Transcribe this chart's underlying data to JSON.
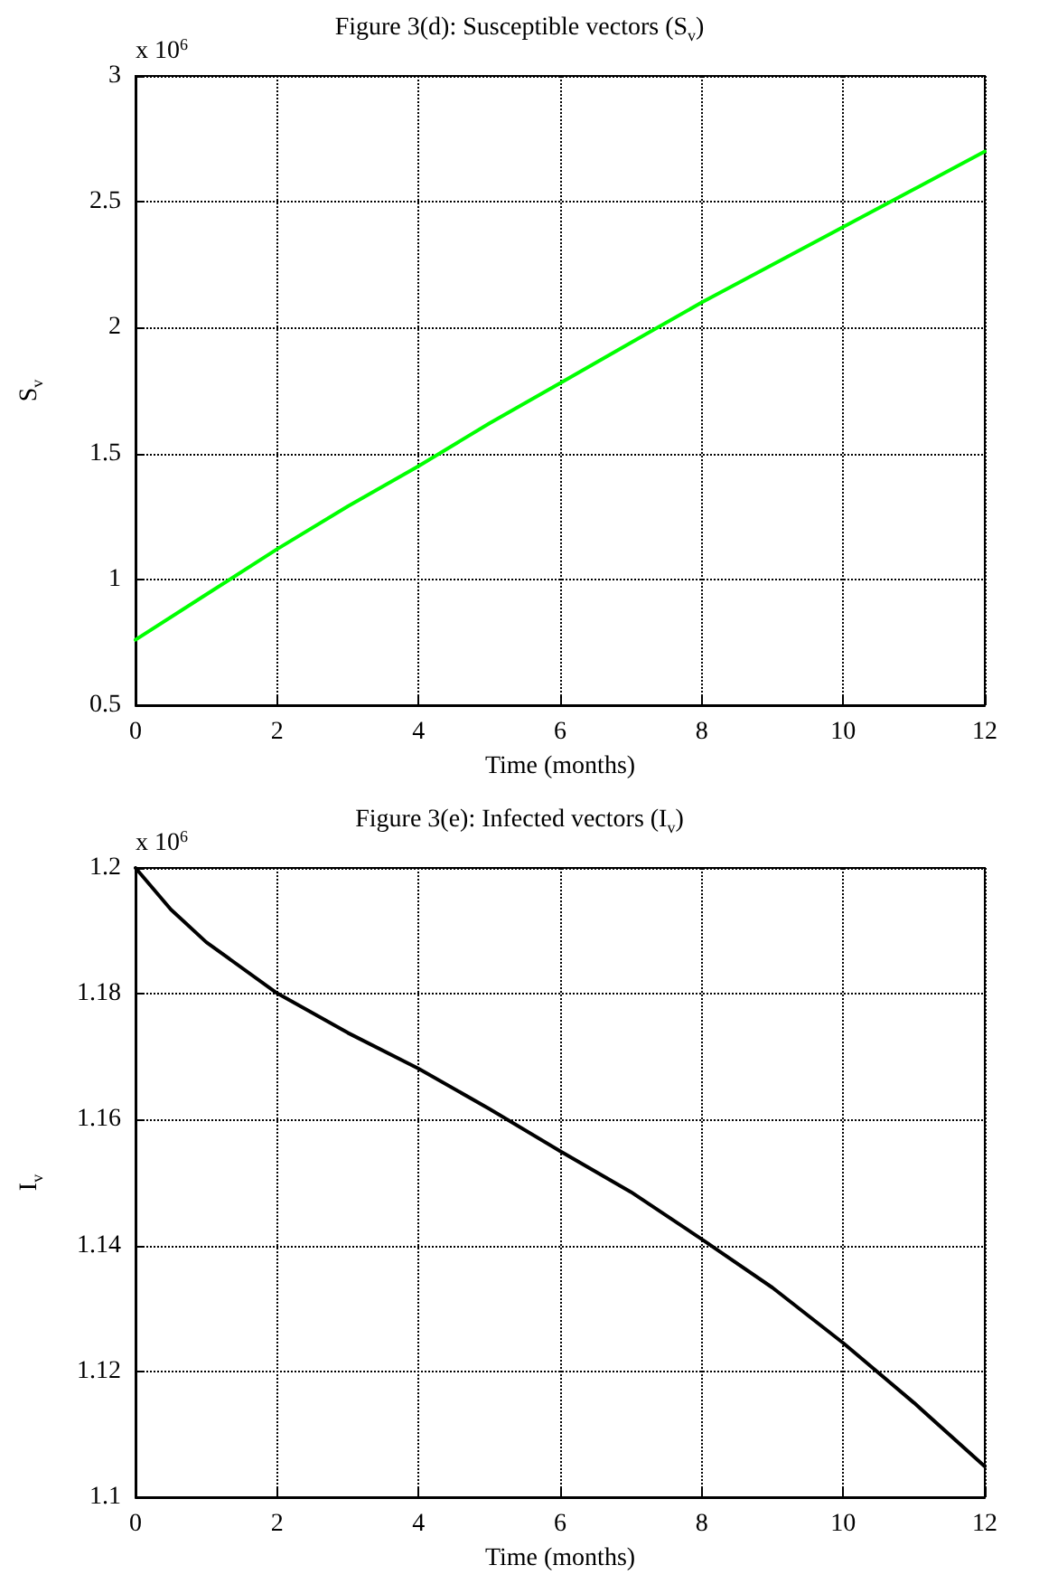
{
  "chart_data": [
    {
      "type": "line",
      "title": "Figure 3(d): Susceptible vectors (S$_{v}$)",
      "xlabel": "Time (months)",
      "ylabel": "S$_{v}$",
      "annotations": [
        "x 10$^{6}$"
      ],
      "x": [
        0,
        1,
        2,
        3,
        4,
        5,
        6,
        7,
        8,
        9,
        10,
        11,
        12
      ],
      "series": [
        {
          "color": "#00ff00",
          "values": [
            0.76,
            0.94,
            1.12,
            1.29,
            1.45,
            1.62,
            1.78,
            1.94,
            2.1,
            2.25,
            2.4,
            2.55,
            2.7
          ]
        }
      ],
      "xlim": [
        0,
        12
      ],
      "xticks": [
        0,
        2,
        4,
        6,
        8,
        10,
        12
      ],
      "ylim": [
        0.5,
        3
      ],
      "yticks": [
        0.5,
        1,
        1.5,
        2,
        2.5,
        3
      ],
      "grid": true,
      "marker": "none",
      "line_style": "solid"
    },
    {
      "type": "line",
      "title": "Figure 3(e): Infected vectors (I$_{v}$)",
      "xlabel": "Time (months)",
      "ylabel": "I$_{v}$",
      "annotations": [
        "x 10$^{6}$"
      ],
      "x": [
        0,
        0.5,
        1,
        2,
        3,
        4,
        5,
        6,
        7,
        8,
        9,
        10,
        11,
        12
      ],
      "series": [
        {
          "color": "#000000",
          "values": [
            1.2,
            1.1934,
            1.1882,
            1.1801,
            1.1738,
            1.1681,
            1.1617,
            1.155,
            1.1485,
            1.141,
            1.1333,
            1.1245,
            1.115,
            1.1049
          ]
        }
      ],
      "xlim": [
        0,
        12
      ],
      "xticks": [
        0,
        2,
        4,
        6,
        8,
        10,
        12
      ],
      "ylim": [
        1.1,
        1.2
      ],
      "yticks": [
        1.1,
        1.12,
        1.14,
        1.16,
        1.18,
        1.2
      ],
      "grid": true,
      "marker": "none",
      "line_style": "solid"
    }
  ]
}
